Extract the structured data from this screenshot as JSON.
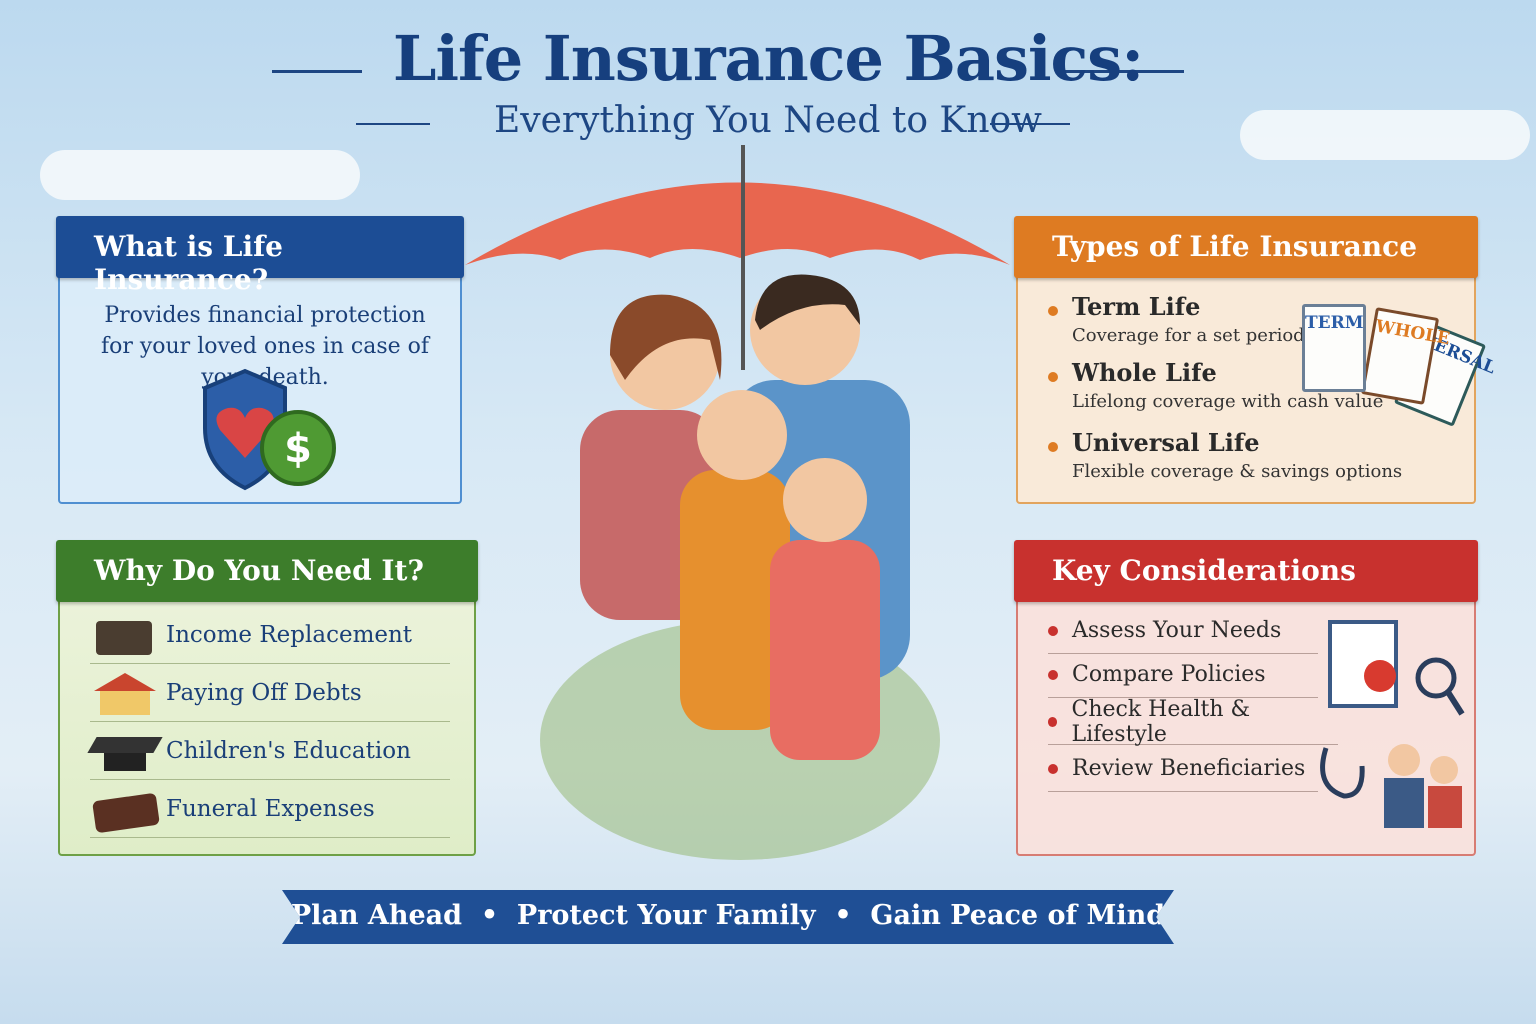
{
  "header": {
    "title": "Life Insurance Basics:",
    "subtitle": "Everything You Need to Know"
  },
  "what": {
    "title": "What is Life Insurance?",
    "text": "Provides financial protection for your loved ones in case of your death.",
    "icon": "shield-heart-dollar-icon"
  },
  "why": {
    "title": "Why Do You Need It?",
    "items": [
      {
        "label": "Income Replacement",
        "icon": "briefcase-icon"
      },
      {
        "label": "Paying Off Debts",
        "icon": "house-icon"
      },
      {
        "label": "Children's Education",
        "icon": "graduation-cap-icon"
      },
      {
        "label": "Funeral Expenses",
        "icon": "casket-icon"
      }
    ]
  },
  "types": {
    "title": "Types of Life Insurance",
    "items": [
      {
        "name": "Term Life",
        "desc": "Coverage for a set period"
      },
      {
        "name": "Whole Life",
        "desc": "Lifelong coverage with cash value"
      },
      {
        "name": "Universal Life",
        "desc": "Flexible coverage & savings options"
      }
    ],
    "docs": [
      "TERM",
      "WHOLE",
      "VERSAL"
    ]
  },
  "key": {
    "title": "Key Considerations",
    "items": [
      "Assess Your Needs",
      "Compare Policies",
      "Check Health & Lifestyle",
      "Review Beneficiaries"
    ]
  },
  "footer": {
    "banner": "Plan Ahead  •  Protect Your Family  •  Gain Peace of Mind"
  },
  "colors": {
    "blue": "#1c4d95",
    "green": "#3d7d2b",
    "orange": "#de7b22",
    "red": "#c8312e",
    "umbrella": "#e8664f"
  }
}
